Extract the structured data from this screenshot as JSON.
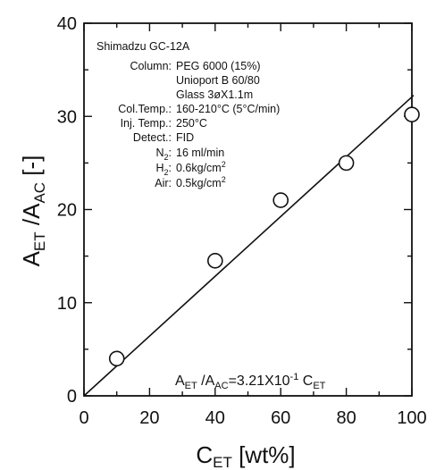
{
  "chart_data": {
    "type": "scatter",
    "xlim": [
      0,
      100
    ],
    "ylim": [
      0,
      40
    ],
    "x_ticks": [
      "0",
      "20",
      "40",
      "60",
      "80",
      "100"
    ],
    "y_ticks": [
      "0",
      "10",
      "20",
      "30",
      "40"
    ],
    "xlabel": {
      "main": "C",
      "sub": "ET",
      "unit": " [wt%]"
    },
    "ylabel": {
      "a": "A",
      "a_sub": "ET",
      "b": " /A",
      "b_sub": "AC",
      "unit": " [-]"
    },
    "grid": false,
    "points": [
      {
        "x": 10,
        "y": 4.0
      },
      {
        "x": 40,
        "y": 14.5
      },
      {
        "x": 60,
        "y": 21.0
      },
      {
        "x": 80,
        "y": 25.0
      },
      {
        "x": 100,
        "y": 30.2
      }
    ],
    "fit_line": {
      "slope": 0.321,
      "intercept": 0,
      "x_from": 0,
      "x_to": 100
    },
    "equation": {
      "a": "A",
      "a_sub": "ET",
      "mid": " /A",
      "mid_sub": "AC",
      "rhs": "=3.21X10",
      "exp": "-1",
      "c": " C",
      "c_sub": "ET"
    },
    "annotations": {
      "instrument": "Shimadzu GC-12A",
      "rows": [
        {
          "label": "Column:",
          "value": "PEG 6000 (15%)"
        },
        {
          "label": "",
          "value": "Unioport B 60/80"
        },
        {
          "label": "",
          "value": "Glass 3øX1.1m"
        },
        {
          "label": "Col.Temp.:",
          "value": "160-210°C (5°C/min)"
        },
        {
          "label": "Inj.  Temp.:",
          "value": "250°C"
        },
        {
          "label": "Detect.:",
          "value": "FID"
        }
      ],
      "n2": {
        "label": "N",
        "label_sub": "2",
        "colon": ":",
        "value": "16 ml/min"
      },
      "h2": {
        "label": "H",
        "label_sub": "2",
        "colon": ":",
        "value": "0.6kg/cm",
        "value_sup": "2"
      },
      "air": {
        "label": "Air:",
        "value": "0.5kg/cm",
        "value_sup": "2"
      }
    }
  }
}
